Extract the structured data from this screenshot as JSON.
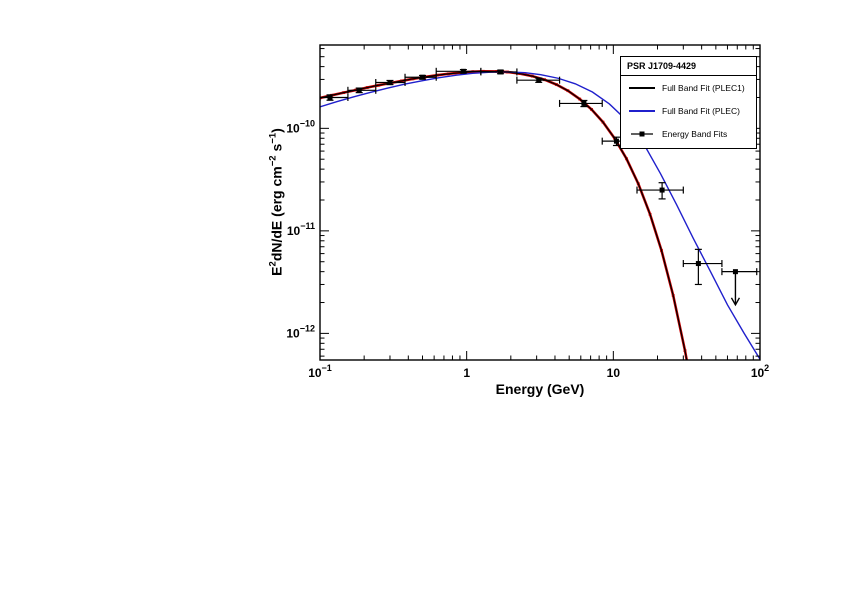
{
  "chart_data": {
    "type": "line",
    "title": "",
    "xlabel": "Energy (GeV)",
    "ylabel": "E²dN/dE (erg cm⁻² s⁻¹)",
    "ylabel_parts": [
      {
        "t": "E"
      },
      {
        "t": "2",
        "sup": true
      },
      {
        "t": "dN/dE (erg cm"
      },
      {
        "t": "−2",
        "sup": true
      },
      {
        "t": " s"
      },
      {
        "t": "−1",
        "sup": true
      },
      {
        "t": ")"
      }
    ],
    "xscale": "log",
    "yscale": "log",
    "xlim": [
      0.1,
      100
    ],
    "ylim": [
      5.5e-13,
      6.5e-10
    ],
    "grid": false,
    "x_ticks": [
      {
        "value": 0.1,
        "mantissa": "10",
        "exponent": "−1"
      },
      {
        "value": 1,
        "mantissa": "1",
        "exponent": ""
      },
      {
        "value": 10,
        "mantissa": "10",
        "exponent": ""
      },
      {
        "value": 100,
        "mantissa": "10",
        "exponent": "2"
      }
    ],
    "y_ticks": [
      {
        "value": 1e-10,
        "mantissa": "10",
        "exponent": "−10"
      },
      {
        "value": 1e-11,
        "mantissa": "10",
        "exponent": "−11"
      },
      {
        "value": 1e-12,
        "mantissa": "10",
        "exponent": "−12"
      }
    ],
    "legend": {
      "title": "PSR J1709-4429",
      "position": "top-right",
      "entries": [
        {
          "label": "Full Band Fit (PLEC1)",
          "color": "#000000",
          "style": "line"
        },
        {
          "label": "Full Band Fit (PLEC)",
          "color": "#2020cc",
          "style": "line"
        },
        {
          "label": "Energy Band Fits",
          "color": "#000000",
          "style": "line-marker"
        }
      ]
    },
    "series": [
      {
        "name": "Full Band Fit (PLEC1) uncertainty band",
        "color": "#cc0000",
        "width": 2.6,
        "markers": true,
        "x": [
          0.1,
          0.12,
          0.145,
          0.175,
          0.21,
          0.25,
          0.3,
          0.36,
          0.43,
          0.52,
          0.63,
          0.75,
          0.9,
          1.1,
          1.3,
          1.6,
          1.9,
          2.3,
          2.8,
          3.4,
          4.1,
          4.9,
          5.9,
          7.1,
          8.5,
          10.2,
          12.3,
          14.8,
          17.8,
          21.3,
          25.6,
          30.8,
          33.5
        ],
        "y": [
          1.98e-10,
          2.1e-10,
          2.23e-10,
          2.36e-10,
          2.5e-10,
          2.63e-10,
          2.76e-10,
          2.9e-10,
          3.04e-10,
          3.17e-10,
          3.3e-10,
          3.4e-10,
          3.49e-10,
          3.57e-10,
          3.6e-10,
          3.59e-10,
          3.54e-10,
          3.42e-10,
          3.23e-10,
          2.98e-10,
          2.67e-10,
          2.33e-10,
          1.93e-10,
          1.53e-10,
          1.15e-10,
          7.99e-11,
          5.05e-11,
          2.88e-11,
          1.45e-11,
          6.44e-12,
          2.34e-12,
          6.79e-13,
          3.56e-13
        ]
      },
      {
        "name": "Full Band Fit (PLEC1)",
        "color": "#000000",
        "width": 1.2,
        "markers": false,
        "x": [
          0.1,
          0.12,
          0.145,
          0.175,
          0.21,
          0.25,
          0.3,
          0.36,
          0.43,
          0.52,
          0.63,
          0.75,
          0.9,
          1.1,
          1.3,
          1.6,
          1.9,
          2.3,
          2.8,
          3.4,
          4.1,
          4.9,
          5.9,
          7.1,
          8.5,
          10.2,
          12.3,
          14.8,
          17.8,
          21.3,
          25.6,
          30.8,
          33.5
        ],
        "y": [
          1.98e-10,
          2.1e-10,
          2.23e-10,
          2.36e-10,
          2.5e-10,
          2.63e-10,
          2.76e-10,
          2.9e-10,
          3.04e-10,
          3.17e-10,
          3.3e-10,
          3.4e-10,
          3.49e-10,
          3.57e-10,
          3.6e-10,
          3.59e-10,
          3.54e-10,
          3.42e-10,
          3.23e-10,
          2.98e-10,
          2.67e-10,
          2.33e-10,
          1.93e-10,
          1.53e-10,
          1.15e-10,
          7.99e-11,
          5.05e-11,
          2.88e-11,
          1.45e-11,
          6.44e-12,
          2.34e-12,
          6.79e-13,
          3.56e-13
        ]
      },
      {
        "name": "Full Band Fit (PLEC)",
        "color": "#2020cc",
        "width": 1.4,
        "markers": false,
        "x": [
          0.1,
          0.13,
          0.17,
          0.22,
          0.29,
          0.38,
          0.5,
          0.65,
          0.85,
          1.1,
          1.45,
          1.9,
          2.5,
          3.2,
          4.2,
          5.5,
          7.2,
          9.4,
          12.3,
          16,
          21,
          27,
          35,
          46,
          60,
          78,
          100
        ],
        "y": [
          1.62e-10,
          1.82e-10,
          2.03e-10,
          2.24e-10,
          2.47e-10,
          2.7e-10,
          2.92e-10,
          3.12e-10,
          3.3e-10,
          3.44e-10,
          3.53e-10,
          3.55e-10,
          3.49e-10,
          3.34e-10,
          3.08e-10,
          2.72e-10,
          2.26e-10,
          1.73e-10,
          1.2e-10,
          7.2e-11,
          3.6e-11,
          1.8e-11,
          8.5e-12,
          4e-12,
          1.9e-12,
          1e-12,
          5.6e-13
        ]
      }
    ],
    "points": {
      "name": "Energy Band Fits",
      "color": "#000000",
      "data": [
        {
          "e": 0.117,
          "elo": 0.1,
          "ehi": 0.155,
          "v": 2e-10,
          "verr": 1.2e-11
        },
        {
          "e": 0.185,
          "elo": 0.155,
          "ehi": 0.24,
          "v": 2.35e-10,
          "verr": 1.2e-11
        },
        {
          "e": 0.3,
          "elo": 0.24,
          "ehi": 0.38,
          "v": 2.8e-10,
          "verr": 1.3e-11
        },
        {
          "e": 0.5,
          "elo": 0.38,
          "ehi": 0.62,
          "v": 3.15e-10,
          "verr": 1.3e-11
        },
        {
          "e": 0.95,
          "elo": 0.62,
          "ehi": 1.25,
          "v": 3.6e-10,
          "verr": 1.4e-11
        },
        {
          "e": 1.7,
          "elo": 1.25,
          "ehi": 2.2,
          "v": 3.55e-10,
          "verr": 1.4e-11
        },
        {
          "e": 3.1,
          "elo": 2.2,
          "ehi": 4.3,
          "v": 2.95e-10,
          "verr": 1.4e-11
        },
        {
          "e": 6.3,
          "elo": 4.3,
          "ehi": 8.4,
          "v": 1.75e-10,
          "verr": 1.2e-11
        },
        {
          "e": 10.5,
          "elo": 8.4,
          "ehi": 14.5,
          "v": 7.5e-11,
          "verr": 7e-12
        },
        {
          "e": 21.5,
          "elo": 14.5,
          "ehi": 30.0,
          "v": 2.5e-11,
          "verr": 4.5e-12
        },
        {
          "e": 38.0,
          "elo": 30.0,
          "ehi": 55.0,
          "v": 4.8e-12,
          "verr": 1.8e-12
        },
        {
          "e": 68.0,
          "elo": 55.0,
          "ehi": 95.0,
          "v": 4e-12,
          "upper_limit": true,
          "arrow_to": 1.9e-12
        }
      ]
    }
  }
}
